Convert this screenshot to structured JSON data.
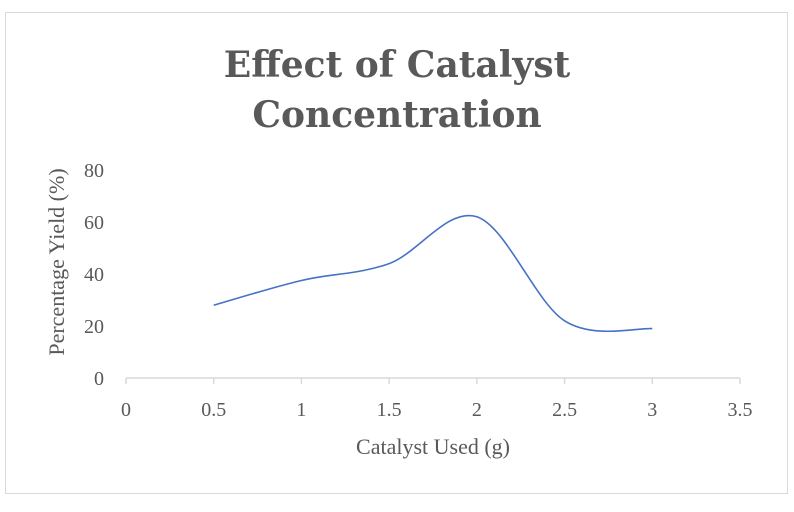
{
  "chart_data": {
    "type": "line",
    "title": [
      "Effect of Catalyst",
      "Concentration"
    ],
    "xlabel": "Catalyst Used (g)",
    "ylabel": "Percentage Yield (%)",
    "xlim": [
      0,
      3.5
    ],
    "ylim": [
      0,
      80
    ],
    "x_ticks": [
      "0",
      "0.5",
      "1",
      "1.5",
      "2",
      "2.5",
      "3",
      "3.5"
    ],
    "y_ticks": [
      "0",
      "20",
      "40",
      "60",
      "80"
    ],
    "grid": false,
    "smooth": true,
    "series": [
      {
        "color": "#4472c4",
        "x": [
          0.5,
          1.0,
          1.5,
          2.0,
          2.5,
          3.0
        ],
        "y": [
          28,
          37.5,
          44,
          62,
          22,
          19
        ]
      }
    ]
  }
}
